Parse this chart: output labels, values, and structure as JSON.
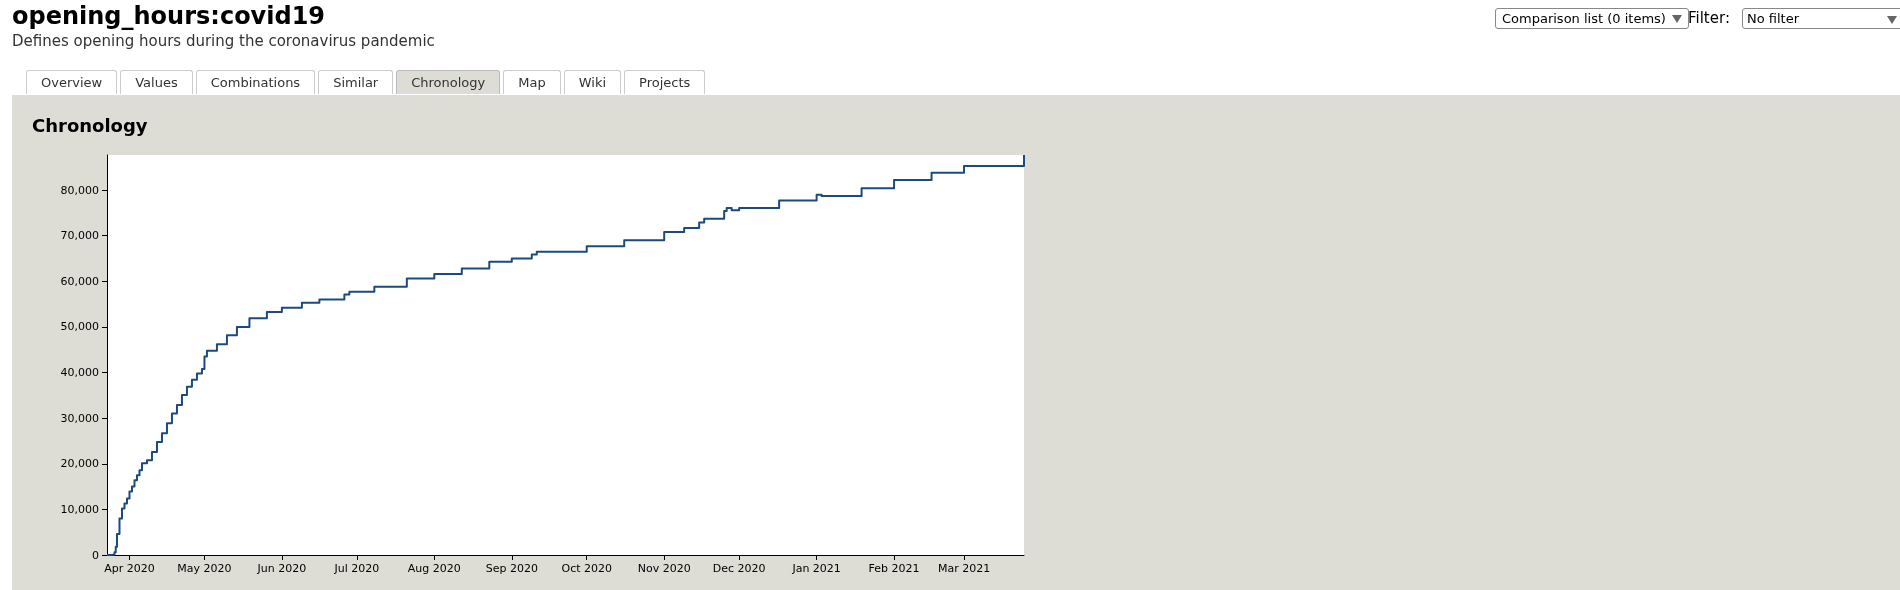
{
  "chart_data": {
    "type": "step",
    "title": "opening_hours:covid19",
    "subtitle": "Defines opening hours during the coronavirus pandemic",
    "annotations": [
      "Overview",
      "Values",
      "Combinations",
      "Similar",
      "Chronology",
      "Map",
      "Wiki",
      "Projects",
      "Chronology",
      "Comparison list (0 items)",
      "Filter:",
      "No filter"
    ],
    "x": [
      "2020-03-23",
      "2020-03-25",
      "2020-03-26",
      "2020-03-26T12:00",
      "2020-03-27",
      "2020-03-28",
      "2020-03-29",
      "2020-03-30",
      "2020-03-31",
      "2020-04-01",
      "2020-04-02",
      "2020-04-03",
      "2020-04-04",
      "2020-04-05",
      "2020-04-06",
      "2020-04-08",
      "2020-04-10",
      "2020-04-12",
      "2020-04-14",
      "2020-04-16",
      "2020-04-18",
      "2020-04-20",
      "2020-04-22",
      "2020-04-24",
      "2020-04-26",
      "2020-04-28",
      "2020-04-30",
      "2020-05-01",
      "2020-05-02",
      "2020-05-06",
      "2020-05-10",
      "2020-05-14",
      "2020-05-19",
      "2020-05-26",
      "2020-06-01",
      "2020-06-09",
      "2020-06-16",
      "2020-06-26",
      "2020-06-28",
      "2020-07-08",
      "2020-07-21",
      "2020-08-01",
      "2020-08-12",
      "2020-08-23",
      "2020-09-01",
      "2020-09-09",
      "2020-09-11",
      "2020-10-01",
      "2020-10-16",
      "2020-11-01",
      "2020-11-09",
      "2020-11-15",
      "2020-11-17",
      "2020-11-25",
      "2020-11-26",
      "2020-11-27",
      "2020-11-28",
      "2020-12-01",
      "2020-12-17",
      "2021-01-01",
      "2021-01-03",
      "2021-01-19",
      "2021-02-01",
      "2021-02-16",
      "2021-03-01",
      "2021-03-25"
    ],
    "values": [
      0,
      100,
      600,
      1800,
      4600,
      8000,
      10200,
      11300,
      12400,
      13900,
      15000,
      16400,
      17500,
      18600,
      20100,
      20800,
      22600,
      24800,
      26700,
      28900,
      31000,
      32900,
      35100,
      36900,
      38400,
      39800,
      40800,
      43500,
      44800,
      46200,
      48200,
      50000,
      51900,
      53300,
      54200,
      55300,
      56000,
      57100,
      57700,
      58800,
      60600,
      61600,
      62800,
      64300,
      65000,
      65900,
      66500,
      67700,
      69000,
      70800,
      71700,
      72900,
      73700,
      75400,
      76100,
      76100,
      75600,
      76100,
      77700,
      79000,
      78700,
      80400,
      82200,
      83800,
      85300,
      87700
    ],
    "color": "#1c4a80",
    "xlim": [
      "2020-03-23",
      "2021-03-25"
    ],
    "xticks": [
      {
        "value": "2020-04-01",
        "label": "Apr 2020"
      },
      {
        "value": "2020-05-01",
        "label": "May 2020"
      },
      {
        "value": "2020-06-01",
        "label": "Jun 2020"
      },
      {
        "value": "2020-07-01",
        "label": "Jul 2020"
      },
      {
        "value": "2020-08-01",
        "label": "Aug 2020"
      },
      {
        "value": "2020-09-01",
        "label": "Sep 2020"
      },
      {
        "value": "2020-10-01",
        "label": "Oct 2020"
      },
      {
        "value": "2020-11-01",
        "label": "Nov 2020"
      },
      {
        "value": "2020-12-01",
        "label": "Dec 2020"
      },
      {
        "value": "2021-01-01",
        "label": "Jan 2021"
      },
      {
        "value": "2021-02-01",
        "label": "Feb 2021"
      },
      {
        "value": "2021-03-01",
        "label": "Mar 2021"
      }
    ],
    "ylim": [
      0,
      87700
    ],
    "yticks": [
      0,
      {
        "value": 10000,
        "label": "10,000"
      },
      {
        "value": 20000,
        "label": "20,000"
      },
      {
        "value": 30000,
        "label": "30,000"
      },
      {
        "value": 40000,
        "label": "40,000"
      },
      {
        "value": 50000,
        "label": "50,000"
      },
      {
        "value": 60000,
        "label": "60,000"
      },
      {
        "value": 70000,
        "label": "70,000"
      },
      {
        "value": 80000,
        "label": "80,000"
      }
    ]
  }
}
